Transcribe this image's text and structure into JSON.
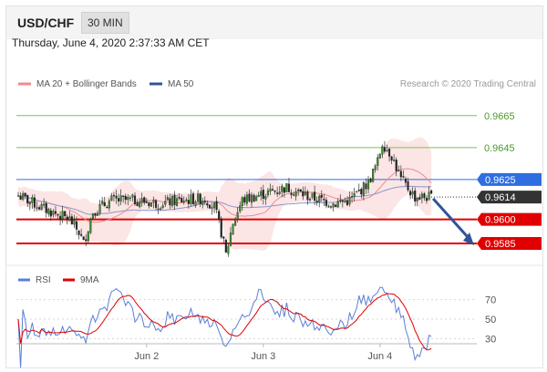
{
  "header": {
    "symbol": "USD/CHF",
    "timeframe": "30 MIN"
  },
  "date_line": "Thursday, June 4, 2020 2:37:33 AM CET",
  "copyright": "Research © 2020 Trading Central",
  "colors": {
    "ma20": "#f28b8b",
    "ma50": "#2f5597",
    "support": "#e00000",
    "resistance": "#7fbf5a",
    "pivot": "#2f6de1",
    "current": "#333333",
    "rsi": "#5b7fd6",
    "nine_ma": "#e00000"
  },
  "chart_data": [
    {
      "type": "candlestick",
      "legend": [
        {
          "name": "MA 20 + Bollinger Bands",
          "color": "#f28b8b"
        },
        {
          "name": "MA 50",
          "color": "#2f5597"
        }
      ],
      "ylim": [
        0.9573,
        0.9678
      ],
      "x_tick_labels": [
        {
          "label": "Jun 2",
          "index": 55
        },
        {
          "label": "Jun 3",
          "index": 105
        },
        {
          "label": "Jun 4",
          "index": 155
        }
      ],
      "levels": [
        {
          "value": 0.9665,
          "label": "0.9665",
          "kind": "resistance"
        },
        {
          "value": 0.9645,
          "label": "0.9645",
          "kind": "resistance"
        },
        {
          "value": 0.9625,
          "label": "0.9625",
          "kind": "pivot"
        },
        {
          "value": 0.9614,
          "label": "0.9614",
          "kind": "current"
        },
        {
          "value": 0.96,
          "label": "0.9600",
          "kind": "support"
        },
        {
          "value": 0.9585,
          "label": "0.9585",
          "kind": "support"
        }
      ],
      "forecast_arrow": {
        "from": 0.9613,
        "to": 0.9585
      }
    },
    {
      "type": "line",
      "legend": [
        {
          "name": "RSI",
          "color": "#5b7fd6"
        },
        {
          "name": "9MA",
          "color": "#e00000"
        }
      ],
      "ylim": [
        20,
        80
      ],
      "y_ticks": [
        70,
        50,
        30
      ]
    }
  ]
}
